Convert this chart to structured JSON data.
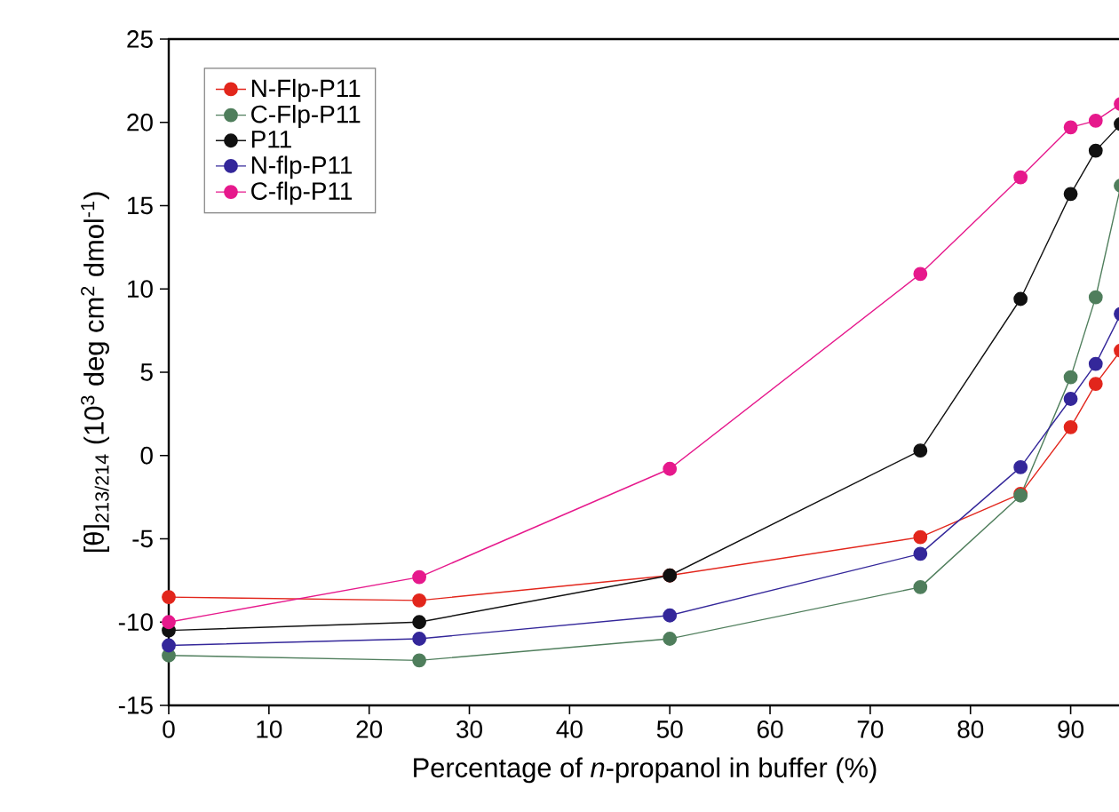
{
  "chart_data": {
    "type": "line",
    "xlabel": "Percentage of *n*-propanol in buffer (%)",
    "ylabel": "[θ]$_{213/214}$ (10$^{3}$ deg cm$^{2}$ dmol$^{-1}$)",
    "x": [
      0,
      25,
      50,
      75,
      85,
      90,
      92.5,
      95
    ],
    "xlim": [
      0,
      95
    ],
    "ylim": [
      -15,
      25
    ],
    "xticks": [
      0,
      10,
      20,
      30,
      40,
      50,
      60,
      70,
      80,
      90
    ],
    "yticks": [
      -15,
      -10,
      -5,
      0,
      5,
      10,
      15,
      20,
      25
    ],
    "legend": "top left",
    "marker": "circle",
    "line_style": "solid",
    "series": [
      {
        "name": "N-Flp-P11",
        "color": "#e2261c",
        "values": [
          -8.5,
          -8.7,
          -7.2,
          -4.9,
          -2.3,
          1.7,
          4.3,
          6.3
        ]
      },
      {
        "name": "C-Flp-P11",
        "color": "#4f7e5c",
        "values": [
          -12.0,
          -12.3,
          -11.0,
          -7.9,
          -2.4,
          4.7,
          9.5,
          16.2
        ]
      },
      {
        "name": "P11",
        "color": "#111111",
        "values": [
          -10.5,
          -10.0,
          -7.2,
          0.3,
          9.4,
          15.7,
          18.3,
          19.9
        ]
      },
      {
        "name": "N-flp-P11",
        "color": "#34279a",
        "values": [
          -11.4,
          -11.0,
          -9.6,
          -5.9,
          -0.7,
          3.4,
          5.5,
          8.5
        ]
      },
      {
        "name": "C-flp-P11",
        "color": "#e6198c",
        "values": [
          -10.0,
          -7.3,
          -0.8,
          10.9,
          16.7,
          19.7,
          20.1,
          21.1
        ]
      }
    ]
  }
}
